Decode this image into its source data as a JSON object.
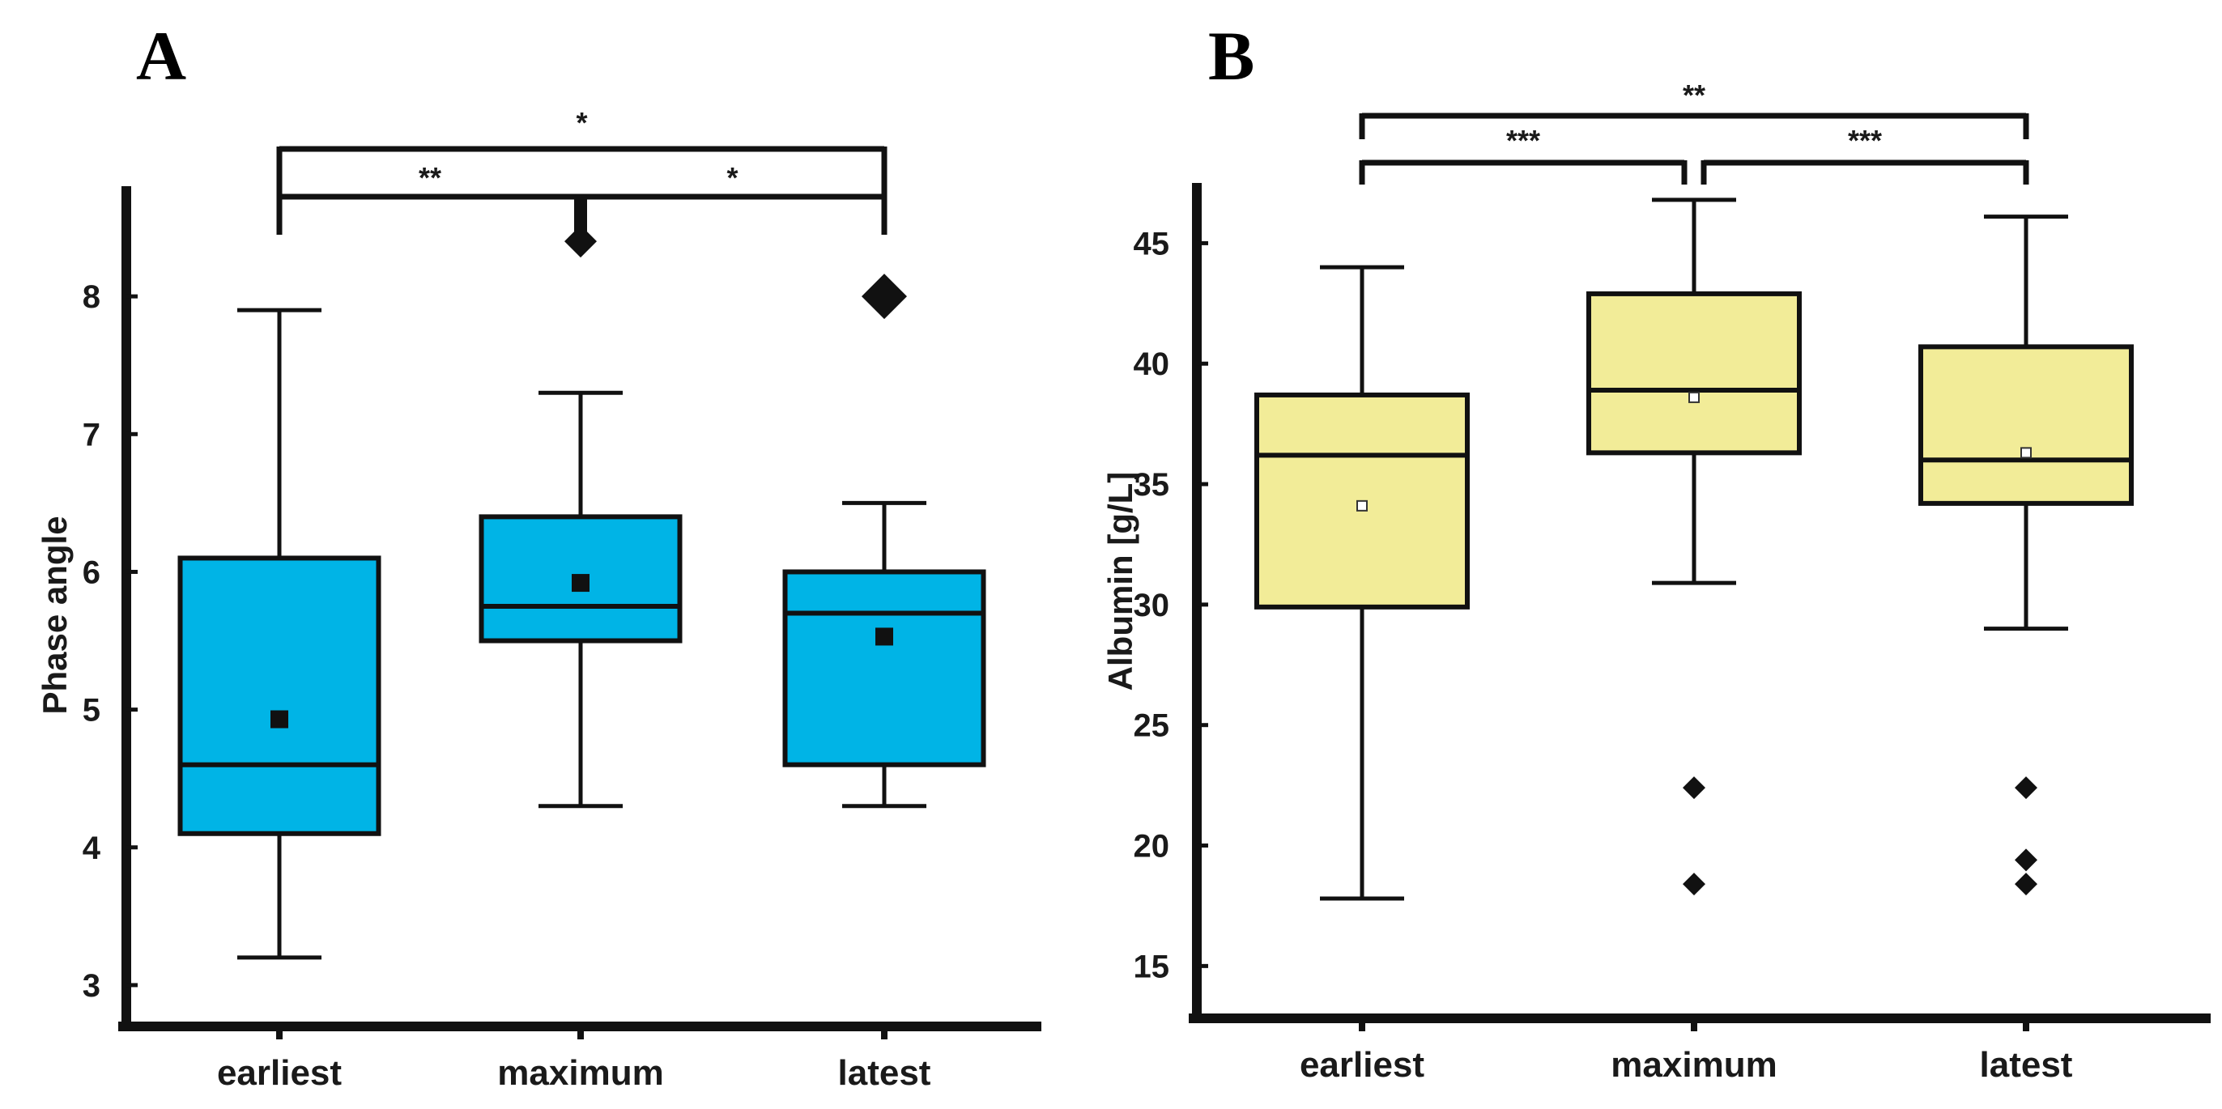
{
  "chart_data": [
    {
      "panel": "A",
      "type": "box",
      "ylabel": "Phase angle",
      "ylim": [
        2.7,
        8.8
      ],
      "yticks": [
        3,
        4,
        5,
        6,
        7,
        8
      ],
      "categories": [
        "earliest",
        "maximum",
        "latest"
      ],
      "box_color": "#00b4e6",
      "mean_marker": "filled-square",
      "boxes": [
        {
          "category": "earliest",
          "whisker_low": 3.2,
          "q1": 4.1,
          "median": 4.6,
          "q3": 6.1,
          "whisker_high": 7.9,
          "mean": 4.93,
          "outliers": []
        },
        {
          "category": "maximum",
          "whisker_low": 4.3,
          "q1": 5.5,
          "median": 5.75,
          "q3": 6.4,
          "whisker_high": 7.3,
          "mean": 5.92,
          "outliers": [
            8.4
          ]
        },
        {
          "category": "latest",
          "whisker_low": 4.3,
          "q1": 4.6,
          "median": 5.7,
          "q3": 6.0,
          "whisker_high": 6.5,
          "mean": 5.53,
          "outliers": [
            8.0
          ]
        }
      ],
      "significance": [
        {
          "from": "earliest",
          "to": "maximum",
          "label": "**"
        },
        {
          "from": "maximum",
          "to": "latest",
          "label": "*"
        },
        {
          "from": "earliest",
          "to": "latest",
          "label": "*"
        }
      ]
    },
    {
      "panel": "B",
      "type": "box",
      "ylabel": "Albumin [g/L]",
      "ylim": [
        13.5,
        47.5
      ],
      "yticks": [
        15,
        20,
        25,
        30,
        35,
        40,
        45
      ],
      "categories": [
        "earliest",
        "maximum",
        "latest"
      ],
      "box_color": "#f2ec98",
      "mean_marker": "open-square",
      "boxes": [
        {
          "category": "earliest",
          "whisker_low": 17.8,
          "q1": 29.9,
          "median": 36.2,
          "q3": 38.7,
          "whisker_high": 44.0,
          "mean": 34.1,
          "outliers": []
        },
        {
          "category": "maximum",
          "whisker_low": 30.9,
          "q1": 36.3,
          "median": 38.9,
          "q3": 42.9,
          "whisker_high": 46.8,
          "mean": 38.6,
          "outliers": [
            22.4,
            18.4
          ]
        },
        {
          "category": "latest",
          "whisker_low": 29.0,
          "q1": 34.2,
          "median": 36.0,
          "q3": 40.7,
          "whisker_high": 46.1,
          "mean": 36.3,
          "outliers": [
            22.4,
            19.4,
            18.4
          ]
        }
      ],
      "significance": [
        {
          "from": "earliest",
          "to": "maximum",
          "label": "***"
        },
        {
          "from": "maximum",
          "to": "latest",
          "label": "***"
        },
        {
          "from": "earliest",
          "to": "latest",
          "label": "**"
        }
      ]
    }
  ]
}
